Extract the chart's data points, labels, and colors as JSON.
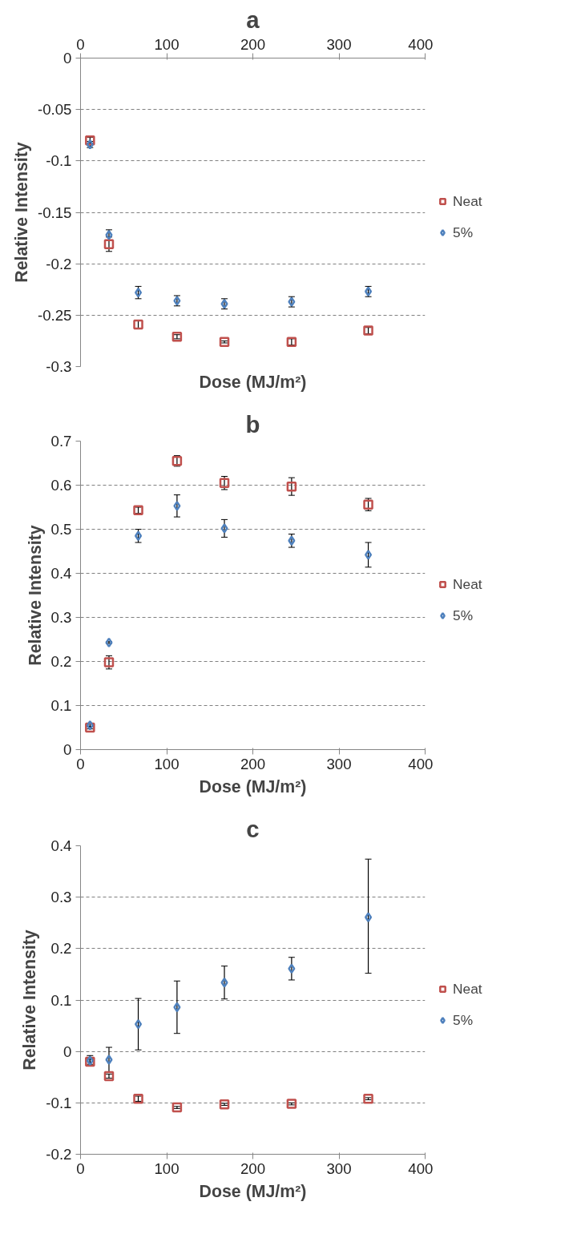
{
  "chart_data": [
    {
      "type": "scatter",
      "title": "a",
      "xlabel": "Dose (MJ/m²)",
      "ylabel": "Relative Intensity",
      "xlim": [
        0,
        400
      ],
      "xticks": [
        0,
        100,
        200,
        300,
        400
      ],
      "ylim": [
        -0.3,
        0
      ],
      "yticks": [
        0,
        -0.05,
        -0.1,
        -0.15,
        -0.2,
        -0.25,
        -0.3
      ],
      "grid": "y",
      "legend": "right",
      "x": [
        11,
        33,
        67,
        112,
        167,
        245,
        334
      ],
      "series": [
        {
          "name": "Neat",
          "color": "#c0504d",
          "marker": "square",
          "values": [
            -0.08,
            -0.181,
            -0.259,
            -0.271,
            -0.276,
            -0.276,
            -0.265
          ],
          "errors": [
            0.003,
            0.007,
            0.004,
            0.002,
            0.001,
            0.003,
            0.003
          ]
        },
        {
          "name": "5%",
          "color": "#4f81bd",
          "marker": "diamond",
          "values": [
            -0.084,
            -0.172,
            -0.228,
            -0.236,
            -0.239,
            -0.237,
            -0.227
          ],
          "errors": [
            0.003,
            0.005,
            0.006,
            0.005,
            0.005,
            0.005,
            0.005
          ]
        }
      ]
    },
    {
      "type": "scatter",
      "title": "b",
      "xlabel": "Dose (MJ/m²)",
      "ylabel": "Relative Intensity",
      "xlim": [
        0,
        400
      ],
      "xticks": [
        0,
        100,
        200,
        300,
        400
      ],
      "ylim": [
        0,
        0.7
      ],
      "yticks": [
        0,
        0.1,
        0.2,
        0.3,
        0.4,
        0.5,
        0.6,
        0.7
      ],
      "grid": "y",
      "legend": "right",
      "x": [
        11,
        33,
        67,
        112,
        167,
        245,
        334
      ],
      "series": [
        {
          "name": "Neat",
          "color": "#c0504d",
          "marker": "square",
          "values": [
            0.05,
            0.198,
            0.543,
            0.655,
            0.605,
            0.597,
            0.556
          ],
          "errors": [
            0.003,
            0.015,
            0.007,
            0.012,
            0.015,
            0.02,
            0.014
          ]
        },
        {
          "name": "5%",
          "color": "#4f81bd",
          "marker": "diamond",
          "values": [
            0.055,
            0.243,
            0.485,
            0.553,
            0.502,
            0.474,
            0.442
          ],
          "errors": [
            0.003,
            0.002,
            0.015,
            0.025,
            0.02,
            0.015,
            0.028
          ]
        }
      ]
    },
    {
      "type": "scatter",
      "title": "c",
      "xlabel": "Dose (MJ/m²)",
      "ylabel": "Relative Intensity",
      "xlim": [
        0,
        400
      ],
      "xticks": [
        0,
        100,
        200,
        300,
        400
      ],
      "ylim": [
        -0.2,
        0.4
      ],
      "yticks": [
        -0.2,
        -0.1,
        0,
        0.1,
        0.2,
        0.3,
        0.4
      ],
      "grid": "y",
      "legend": "right",
      "x": [
        11,
        33,
        67,
        112,
        167,
        245,
        334
      ],
      "series": [
        {
          "name": "Neat",
          "color": "#c0504d",
          "marker": "square",
          "values": [
            -0.02,
            -0.048,
            -0.092,
            -0.109,
            -0.103,
            -0.102,
            -0.092
          ],
          "errors": [
            0.005,
            0.004,
            0.005,
            0.002,
            0.002,
            0.002,
            0.002
          ]
        },
        {
          "name": "5%",
          "color": "#4f81bd",
          "marker": "diamond",
          "values": [
            -0.018,
            -0.016,
            0.053,
            0.086,
            0.134,
            0.161,
            0.261
          ],
          "errors": [
            0.01,
            0.024,
            0.05,
            0.051,
            0.032,
            0.022,
            [
              0.152,
              0.374
            ]
          ]
        }
      ]
    }
  ]
}
